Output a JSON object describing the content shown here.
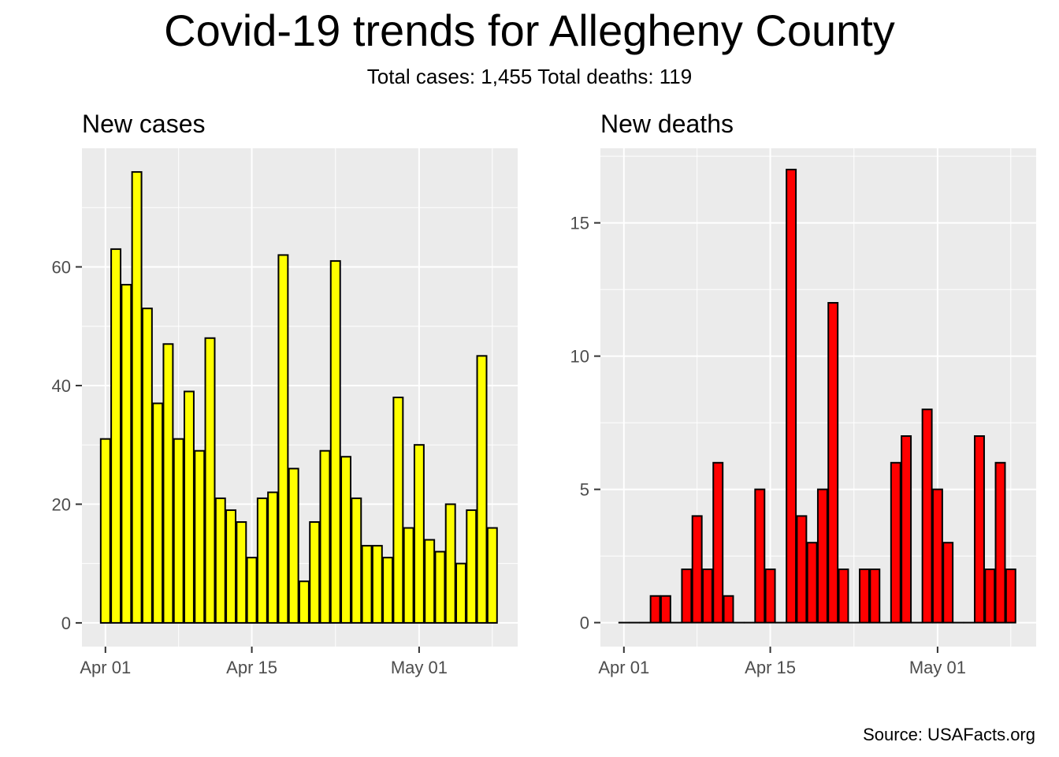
{
  "title": "Covid-19 trends for Allegheny County",
  "subtitle": "Total cases: 1,455  Total deaths: 119",
  "caption": "Source: USAFacts.org",
  "colors": {
    "panel_bg": "#EBEBEB",
    "grid": "#FFFFFF",
    "tick": "#4D4D4D",
    "bar_outline": "#000000"
  },
  "chart_data": [
    {
      "type": "bar",
      "title": "New cases",
      "xlabel": "",
      "ylabel": "",
      "fill": "#FFFF00",
      "x": [
        "2020-04-01",
        "2020-04-02",
        "2020-04-03",
        "2020-04-04",
        "2020-04-05",
        "2020-04-06",
        "2020-04-07",
        "2020-04-08",
        "2020-04-09",
        "2020-04-10",
        "2020-04-11",
        "2020-04-12",
        "2020-04-13",
        "2020-04-14",
        "2020-04-15",
        "2020-04-16",
        "2020-04-17",
        "2020-04-18",
        "2020-04-19",
        "2020-04-20",
        "2020-04-21",
        "2020-04-22",
        "2020-04-23",
        "2020-04-24",
        "2020-04-25",
        "2020-04-26",
        "2020-04-27",
        "2020-04-28",
        "2020-04-29",
        "2020-04-30",
        "2020-05-01",
        "2020-05-02",
        "2020-05-03",
        "2020-05-04",
        "2020-05-05",
        "2020-05-06",
        "2020-05-07",
        "2020-05-08"
      ],
      "values": [
        31,
        63,
        57,
        76,
        53,
        37,
        47,
        31,
        39,
        29,
        48,
        21,
        19,
        17,
        11,
        21,
        22,
        62,
        26,
        7,
        17,
        29,
        61,
        28,
        21,
        13,
        13,
        11,
        38,
        16,
        30,
        14,
        12,
        20,
        10,
        19,
        45,
        16
      ],
      "xticks": [
        "Apr 01",
        "Apr 15",
        "May 01"
      ],
      "yticks": [
        0,
        20,
        40,
        60
      ],
      "ylim": [
        -4,
        80
      ],
      "grid": true
    },
    {
      "type": "bar",
      "title": "New deaths",
      "xlabel": "",
      "ylabel": "",
      "fill": "#FF0000",
      "x": [
        "2020-04-01",
        "2020-04-02",
        "2020-04-03",
        "2020-04-04",
        "2020-04-05",
        "2020-04-06",
        "2020-04-07",
        "2020-04-08",
        "2020-04-09",
        "2020-04-10",
        "2020-04-11",
        "2020-04-12",
        "2020-04-13",
        "2020-04-14",
        "2020-04-15",
        "2020-04-16",
        "2020-04-17",
        "2020-04-18",
        "2020-04-19",
        "2020-04-20",
        "2020-04-21",
        "2020-04-22",
        "2020-04-23",
        "2020-04-24",
        "2020-04-25",
        "2020-04-26",
        "2020-04-27",
        "2020-04-28",
        "2020-04-29",
        "2020-04-30",
        "2020-05-01",
        "2020-05-02",
        "2020-05-03",
        "2020-05-04",
        "2020-05-05",
        "2020-05-06",
        "2020-05-07",
        "2020-05-08"
      ],
      "values": [
        0,
        0,
        0,
        1,
        1,
        0,
        2,
        4,
        2,
        6,
        1,
        0,
        0,
        5,
        2,
        0,
        17,
        4,
        3,
        5,
        12,
        2,
        0,
        2,
        2,
        0,
        6,
        7,
        0,
        8,
        5,
        3,
        0,
        0,
        7,
        2,
        6,
        2
      ],
      "xticks": [
        "Apr 01",
        "Apr 15",
        "May 01"
      ],
      "yticks": [
        0,
        5,
        10,
        15
      ],
      "ylim": [
        -0.9,
        17.8
      ],
      "grid": true
    }
  ]
}
